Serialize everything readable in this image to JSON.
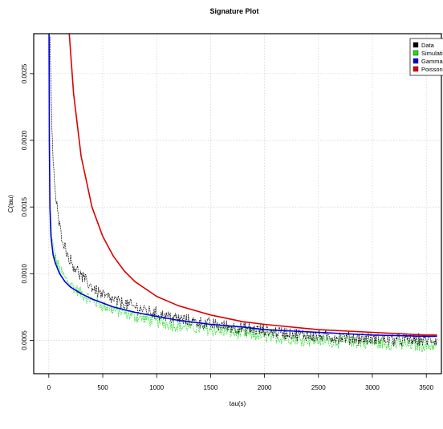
{
  "chart_data": {
    "type": "line",
    "title": "Signature Plot",
    "xlabel": "tau(s)",
    "ylabel": "C(tau)",
    "xlim": [
      -140,
      3640
    ],
    "ylim": [
      0.00025,
      0.0028
    ],
    "xticks": [
      0,
      500,
      1000,
      1500,
      2000,
      2500,
      3000,
      3500
    ],
    "yticks": [
      0.0005,
      0.001,
      0.0015,
      0.002,
      0.0025
    ],
    "ytick_labels": [
      "0.0005",
      "0.0010",
      "0.0015",
      "0.0020",
      "0.0025"
    ],
    "grid": true,
    "legend_position": "top-right",
    "series": [
      {
        "name": "Data",
        "color": "#000000",
        "style": "dashed",
        "x": [
          10,
          30,
          60,
          100,
          150,
          200,
          250,
          300,
          400,
          500,
          600,
          800,
          1000,
          1200,
          1500,
          1800,
          2000,
          2500,
          3000,
          3500,
          3600
        ],
        "y": [
          0.0028,
          0.002,
          0.0016,
          0.00135,
          0.0012,
          0.0011,
          0.00104,
          0.00098,
          0.0009,
          0.00084,
          0.0008,
          0.00075,
          0.0007,
          0.00066,
          0.00062,
          0.00059,
          0.00057,
          0.00053,
          0.00051,
          0.0005,
          0.0005
        ]
      },
      {
        "name": "Simulation",
        "color": "#22dd22",
        "style": "dashed",
        "x": [
          10,
          30,
          60,
          100,
          150,
          200,
          250,
          300,
          400,
          500,
          600,
          800,
          1000,
          1200,
          1500,
          1800,
          2000,
          2500,
          3000,
          3500,
          3600
        ],
        "y": [
          0.0015,
          0.00125,
          0.00112,
          0.00103,
          0.00097,
          0.00092,
          0.00088,
          0.00085,
          0.0008,
          0.00076,
          0.00073,
          0.00068,
          0.00064,
          0.00061,
          0.00058,
          0.00055,
          0.00053,
          0.0005,
          0.00048,
          0.00046,
          0.00046
        ]
      },
      {
        "name": "Gamma",
        "color": "#0000dd",
        "style": "solid",
        "x": [
          2,
          5,
          10,
          20,
          40,
          60,
          100,
          150,
          200,
          300,
          400,
          500,
          600,
          800,
          1000,
          1200,
          1500,
          1800,
          2000,
          2500,
          3000,
          3500,
          3600
        ],
        "y": [
          0.0028,
          0.002,
          0.0015,
          0.00128,
          0.00114,
          0.00108,
          0.001,
          0.00094,
          0.0009,
          0.00085,
          0.00081,
          0.00078,
          0.00075,
          0.00071,
          0.00068,
          0.00065,
          0.00062,
          0.0006,
          0.00058,
          0.00056,
          0.00054,
          0.00053,
          0.00053
        ]
      },
      {
        "name": "Poisson",
        "color": "#dd0000",
        "style": "solid",
        "x": [
          190,
          230,
          300,
          400,
          500,
          600,
          700,
          800,
          1000,
          1200,
          1500,
          1800,
          2000,
          2500,
          3000,
          3500,
          3600
        ],
        "y": [
          0.0028,
          0.00235,
          0.00188,
          0.0015,
          0.00128,
          0.00113,
          0.00102,
          0.00094,
          0.00083,
          0.00076,
          0.00069,
          0.00064,
          0.00062,
          0.00058,
          0.00056,
          0.00054,
          0.00054
        ]
      }
    ]
  }
}
